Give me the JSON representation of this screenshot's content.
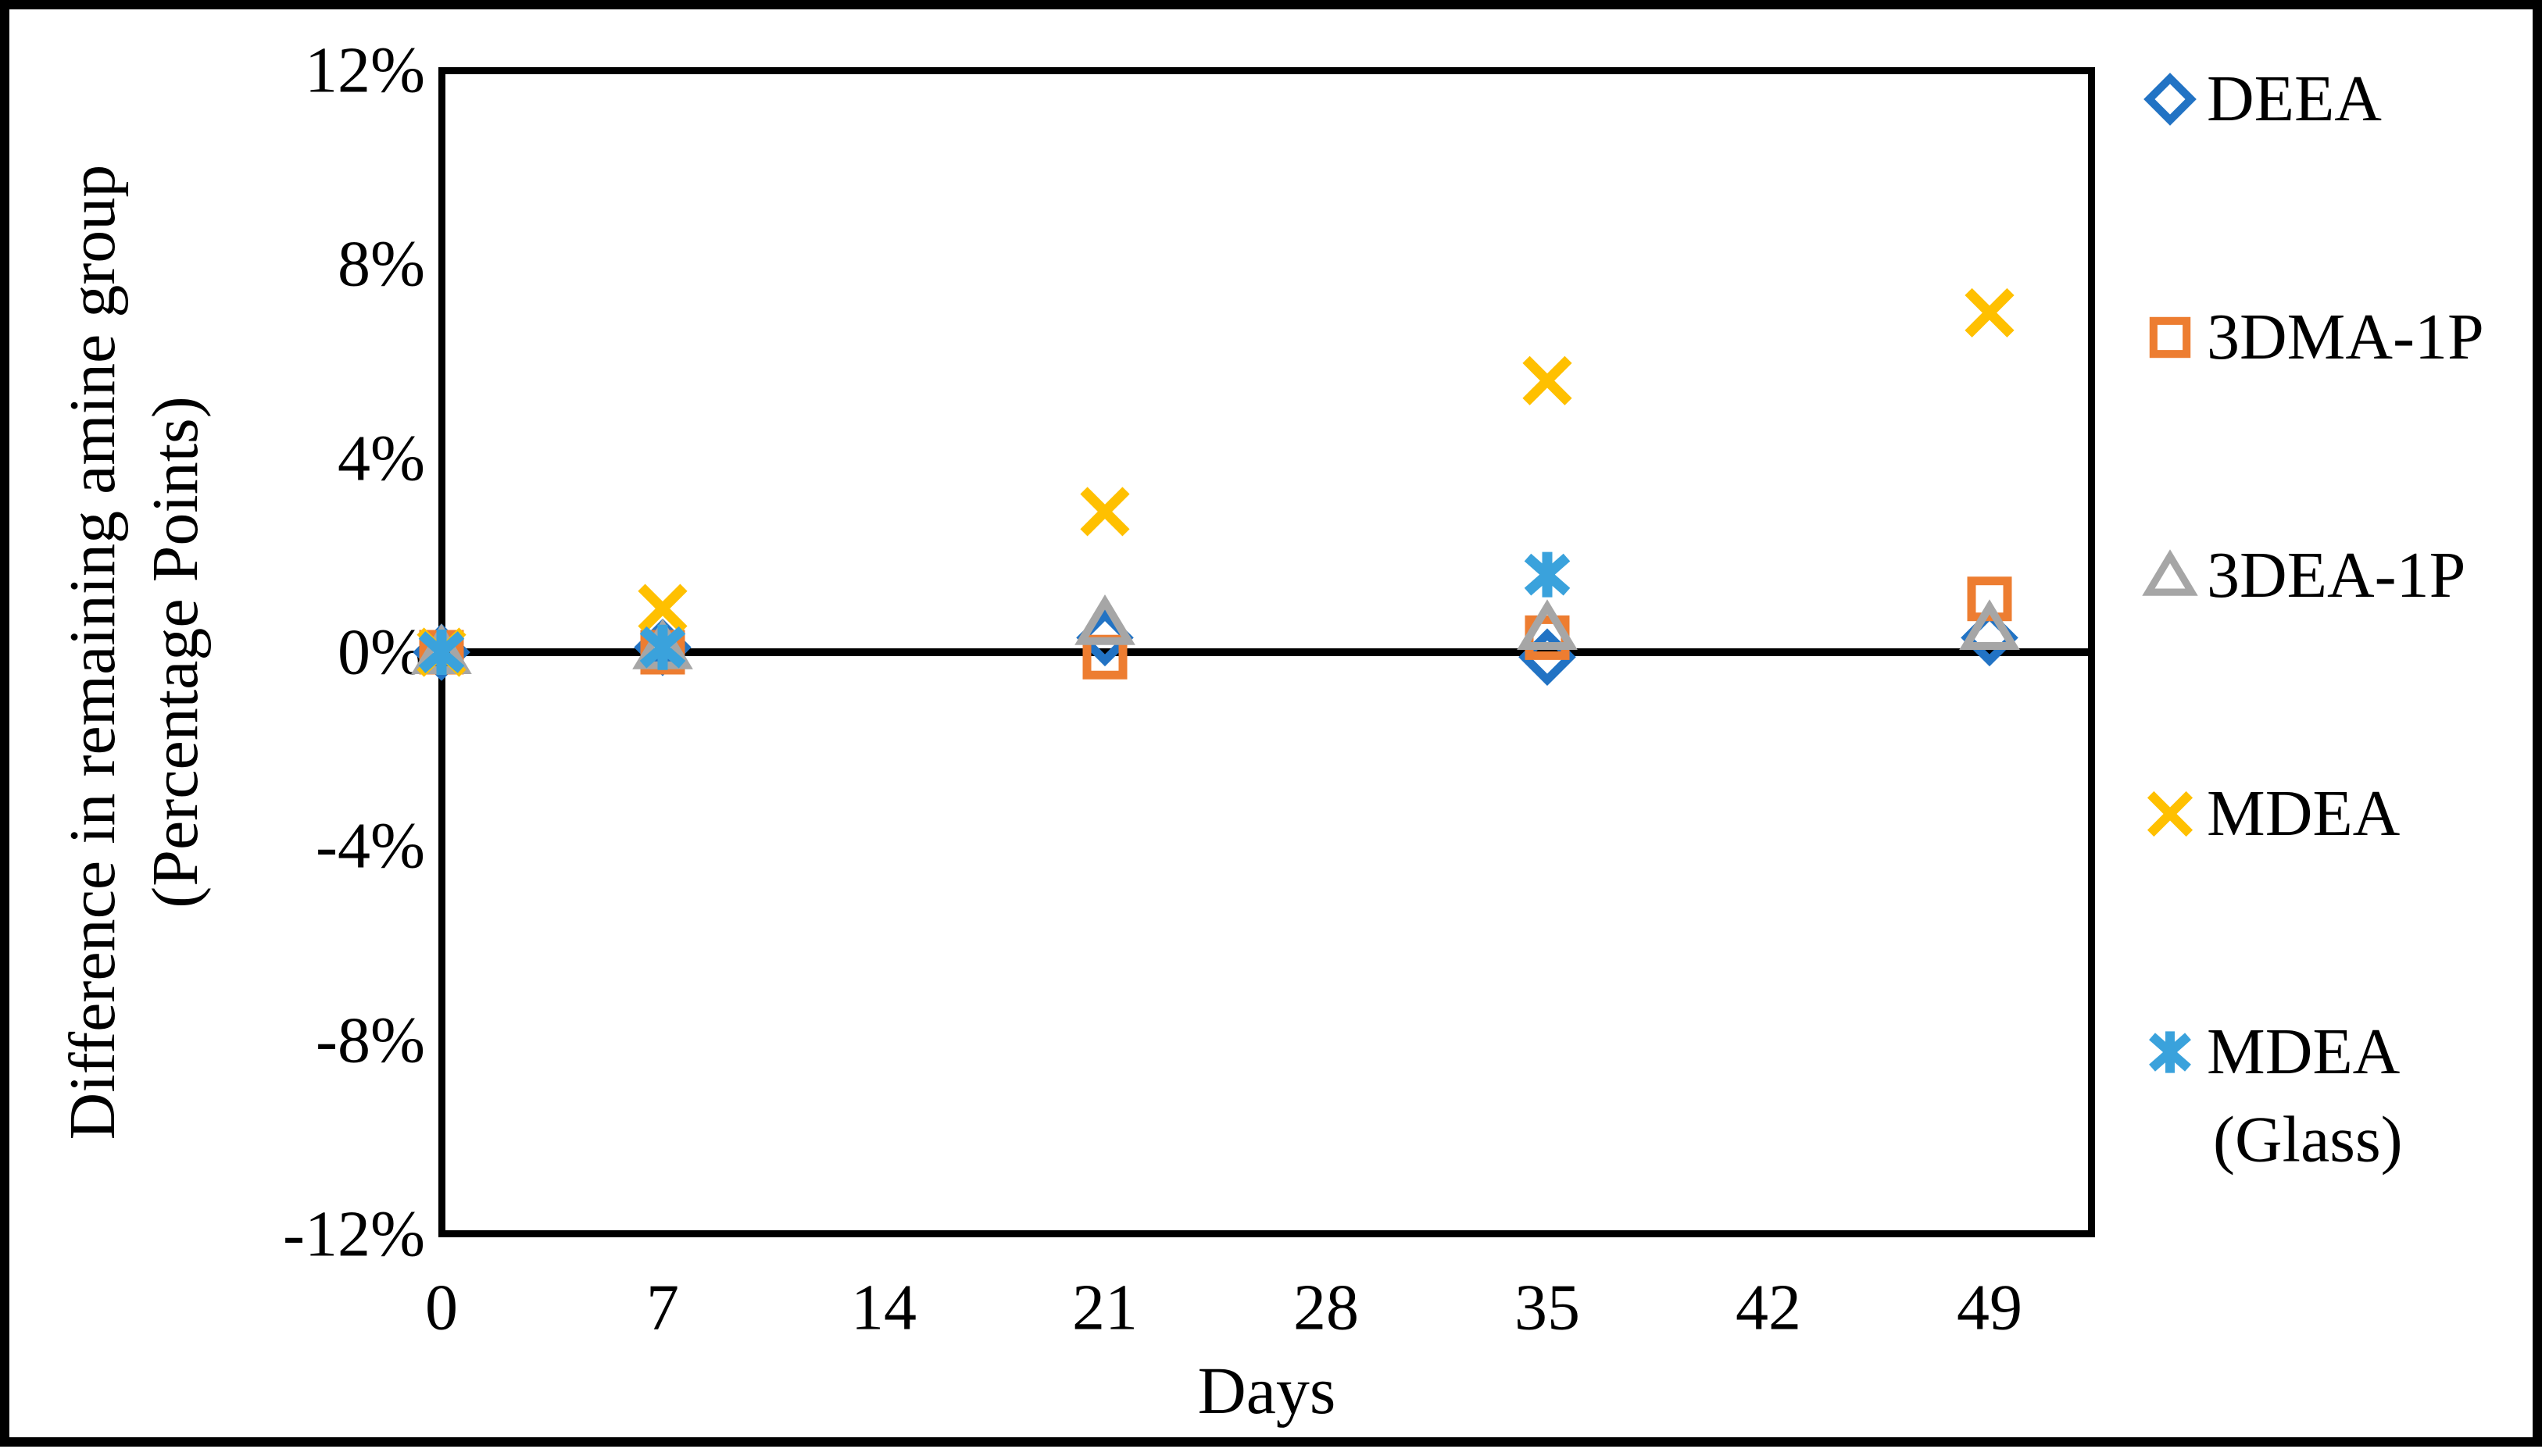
{
  "figure": {
    "background_color": "#ffffff",
    "border_color": "#000000"
  },
  "chart_data": {
    "type": "scatter",
    "title": "",
    "xlabel": "Days",
    "ylabel_line1": "Difference in remaining amine group",
    "ylabel_line2": "(Percentage  Points)",
    "xlim": [
      0,
      52.2
    ],
    "ylim": [
      -12,
      12
    ],
    "grid": false,
    "zero_line": true,
    "legend_position": "right-outside",
    "x_ticks": [
      0,
      7,
      14,
      21,
      28,
      35,
      42,
      49
    ],
    "y_ticks": [
      {
        "value": 12,
        "label": "12%"
      },
      {
        "value": 8,
        "label": "8%"
      },
      {
        "value": 4,
        "label": "4%"
      },
      {
        "value": 0,
        "label": "0%"
      },
      {
        "value": -4,
        "label": "-4%"
      },
      {
        "value": -8,
        "label": "-8%"
      },
      {
        "value": -12,
        "label": "-12%"
      }
    ],
    "axis_color": "#000000",
    "series": [
      {
        "name": "DEEA",
        "marker": "diamond",
        "color": "#2273C4",
        "points": [
          {
            "x": 0,
            "y": 0.0
          },
          {
            "x": 7,
            "y": 0.1
          },
          {
            "x": 21,
            "y": 0.3
          },
          {
            "x": 35,
            "y": -0.1
          },
          {
            "x": 49,
            "y": 0.3
          }
        ]
      },
      {
        "name": "3DMA-1P",
        "marker": "square",
        "color": "#ED7D31",
        "points": [
          {
            "x": 0,
            "y": 0.0
          },
          {
            "x": 7,
            "y": 0.0
          },
          {
            "x": 21,
            "y": -0.1
          },
          {
            "x": 35,
            "y": 0.3
          },
          {
            "x": 49,
            "y": 1.1
          }
        ]
      },
      {
        "name": "3DEA-1P",
        "marker": "triangle",
        "color": "#A6A6A6",
        "points": [
          {
            "x": 0,
            "y": 0.0
          },
          {
            "x": 7,
            "y": 0.1
          },
          {
            "x": 21,
            "y": 0.6
          },
          {
            "x": 35,
            "y": 0.5
          },
          {
            "x": 49,
            "y": 0.5
          }
        ]
      },
      {
        "name": "MDEA",
        "marker": "xcross",
        "color": "#FFC000",
        "points": [
          {
            "x": 0,
            "y": 0.0
          },
          {
            "x": 7,
            "y": 0.9
          },
          {
            "x": 21,
            "y": 2.9
          },
          {
            "x": 35,
            "y": 5.6
          },
          {
            "x": 49,
            "y": 7.0
          }
        ]
      },
      {
        "name": "MDEA (Glass)",
        "marker": "asterisk",
        "color": "#3AA2DC",
        "points": [
          {
            "x": 0,
            "y": 0.0
          },
          {
            "x": 7,
            "y": 0.1
          },
          {
            "x": 35,
            "y": 1.6
          }
        ]
      }
    ]
  },
  "legend": {
    "items": [
      {
        "label": "DEEA",
        "label2": "",
        "marker": "diamond",
        "color": "#2273C4"
      },
      {
        "label": "3DMA-1P",
        "label2": "",
        "marker": "square",
        "color": "#ED7D31"
      },
      {
        "label": "3DEA-1P",
        "label2": "",
        "marker": "triangle",
        "color": "#A6A6A6"
      },
      {
        "label": "MDEA",
        "label2": "",
        "marker": "xcross",
        "color": "#FFC000"
      },
      {
        "label": "MDEA",
        "label2": "(Glass)",
        "marker": "asterisk",
        "color": "#3AA2DC"
      }
    ]
  }
}
